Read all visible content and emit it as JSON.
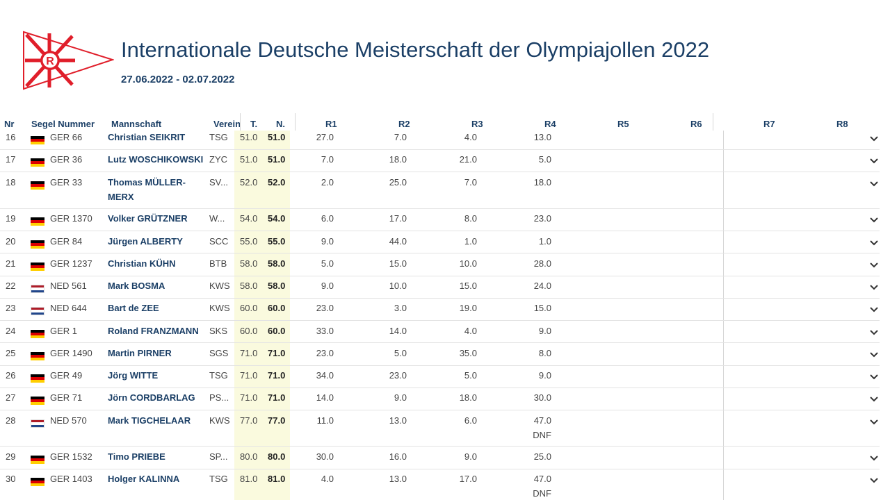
{
  "header": {
    "title": "Internationale Deutsche Meisterschaft der Olympiajollen 2022",
    "dates": "27.06.2022 - 02.07.2022",
    "logo_letter": "R"
  },
  "columns": {
    "nr": "Nr",
    "sail": "Segel Nummer",
    "crew": "Mannschaft",
    "club": "Verein",
    "total": "T.",
    "net": "N.",
    "races": [
      "R1",
      "R2",
      "R3",
      "R4",
      "R5",
      "R6",
      "R7",
      "R8"
    ]
  },
  "rows": [
    {
      "nr": "16",
      "flag": "GER",
      "sail": "GER 66",
      "name": "Christian SEIKRIT",
      "club": "TSG",
      "t": "51.0",
      "n": "51.0",
      "r": [
        "27.0",
        "7.0",
        "4.0",
        "13.0"
      ]
    },
    {
      "nr": "17",
      "flag": "GER",
      "sail": "GER 36",
      "name": "Lutz WOSCHIKOWSKI",
      "club": "ZYC",
      "t": "51.0",
      "n": "51.0",
      "r": [
        "7.0",
        "18.0",
        "21.0",
        "5.0"
      ]
    },
    {
      "nr": "18",
      "flag": "GER",
      "sail": "GER 33",
      "name": "Thomas MÜLLER-\nMERX",
      "club": "SV...",
      "t": "52.0",
      "n": "52.0",
      "r": [
        "2.0",
        "25.0",
        "7.0",
        "18.0"
      ]
    },
    {
      "nr": "19",
      "flag": "GER",
      "sail": "GER 1370",
      "name": "Volker GRÜTZNER",
      "club": "W...",
      "t": "54.0",
      "n": "54.0",
      "r": [
        "6.0",
        "17.0",
        "8.0",
        "23.0"
      ]
    },
    {
      "nr": "20",
      "flag": "GER",
      "sail": "GER 84",
      "name": "Jürgen ALBERTY",
      "club": "SCC",
      "t": "55.0",
      "n": "55.0",
      "r": [
        "9.0",
        "44.0",
        "1.0",
        "1.0"
      ]
    },
    {
      "nr": "21",
      "flag": "GER",
      "sail": "GER 1237",
      "name": "Christian KÜHN",
      "club": "BTB",
      "t": "58.0",
      "n": "58.0",
      "r": [
        "5.0",
        "15.0",
        "10.0",
        "28.0"
      ]
    },
    {
      "nr": "22",
      "flag": "NED",
      "sail": "NED 561",
      "name": "Mark BOSMA",
      "club": "KWS",
      "t": "58.0",
      "n": "58.0",
      "r": [
        "9.0",
        "10.0",
        "15.0",
        "24.0"
      ]
    },
    {
      "nr": "23",
      "flag": "NED",
      "sail": "NED 644",
      "name": "Bart de ZEE",
      "club": "KWS",
      "t": "60.0",
      "n": "60.0",
      "r": [
        "23.0",
        "3.0",
        "19.0",
        "15.0"
      ]
    },
    {
      "nr": "24",
      "flag": "GER",
      "sail": "GER 1",
      "name": "Roland FRANZMANN",
      "club": "SKS",
      "t": "60.0",
      "n": "60.0",
      "r": [
        "33.0",
        "14.0",
        "4.0",
        "9.0"
      ]
    },
    {
      "nr": "25",
      "flag": "GER",
      "sail": "GER 1490",
      "name": "Martin PIRNER",
      "club": "SGS",
      "t": "71.0",
      "n": "71.0",
      "r": [
        "23.0",
        "5.0",
        "35.0",
        "8.0"
      ]
    },
    {
      "nr": "26",
      "flag": "GER",
      "sail": "GER 49",
      "name": "Jörg WITTE",
      "club": "TSG",
      "t": "71.0",
      "n": "71.0",
      "r": [
        "34.0",
        "23.0",
        "5.0",
        "9.0"
      ]
    },
    {
      "nr": "27",
      "flag": "GER",
      "sail": "GER 71",
      "name": "Jörn CORDBARLAG",
      "club": "PS...",
      "t": "71.0",
      "n": "71.0",
      "r": [
        "14.0",
        "9.0",
        "18.0",
        "30.0"
      ]
    },
    {
      "nr": "28",
      "flag": "NED",
      "sail": "NED 570",
      "name": "Mark TIGCHELAAR",
      "club": "KWS",
      "t": "77.0",
      "n": "77.0",
      "r": [
        "11.0",
        "13.0",
        "6.0",
        "47.0\nDNF"
      ]
    },
    {
      "nr": "29",
      "flag": "GER",
      "sail": "GER 1532",
      "name": "Timo PRIEBE",
      "club": "SP...",
      "t": "80.0",
      "n": "80.0",
      "r": [
        "30.0",
        "16.0",
        "9.0",
        "25.0"
      ]
    },
    {
      "nr": "30",
      "flag": "GER",
      "sail": "GER 1403",
      "name": "Holger KALINNA",
      "club": "TSG",
      "t": "81.0",
      "n": "81.0",
      "r": [
        "4.0",
        "13.0",
        "17.0",
        "47.0\nDNF"
      ]
    }
  ]
}
